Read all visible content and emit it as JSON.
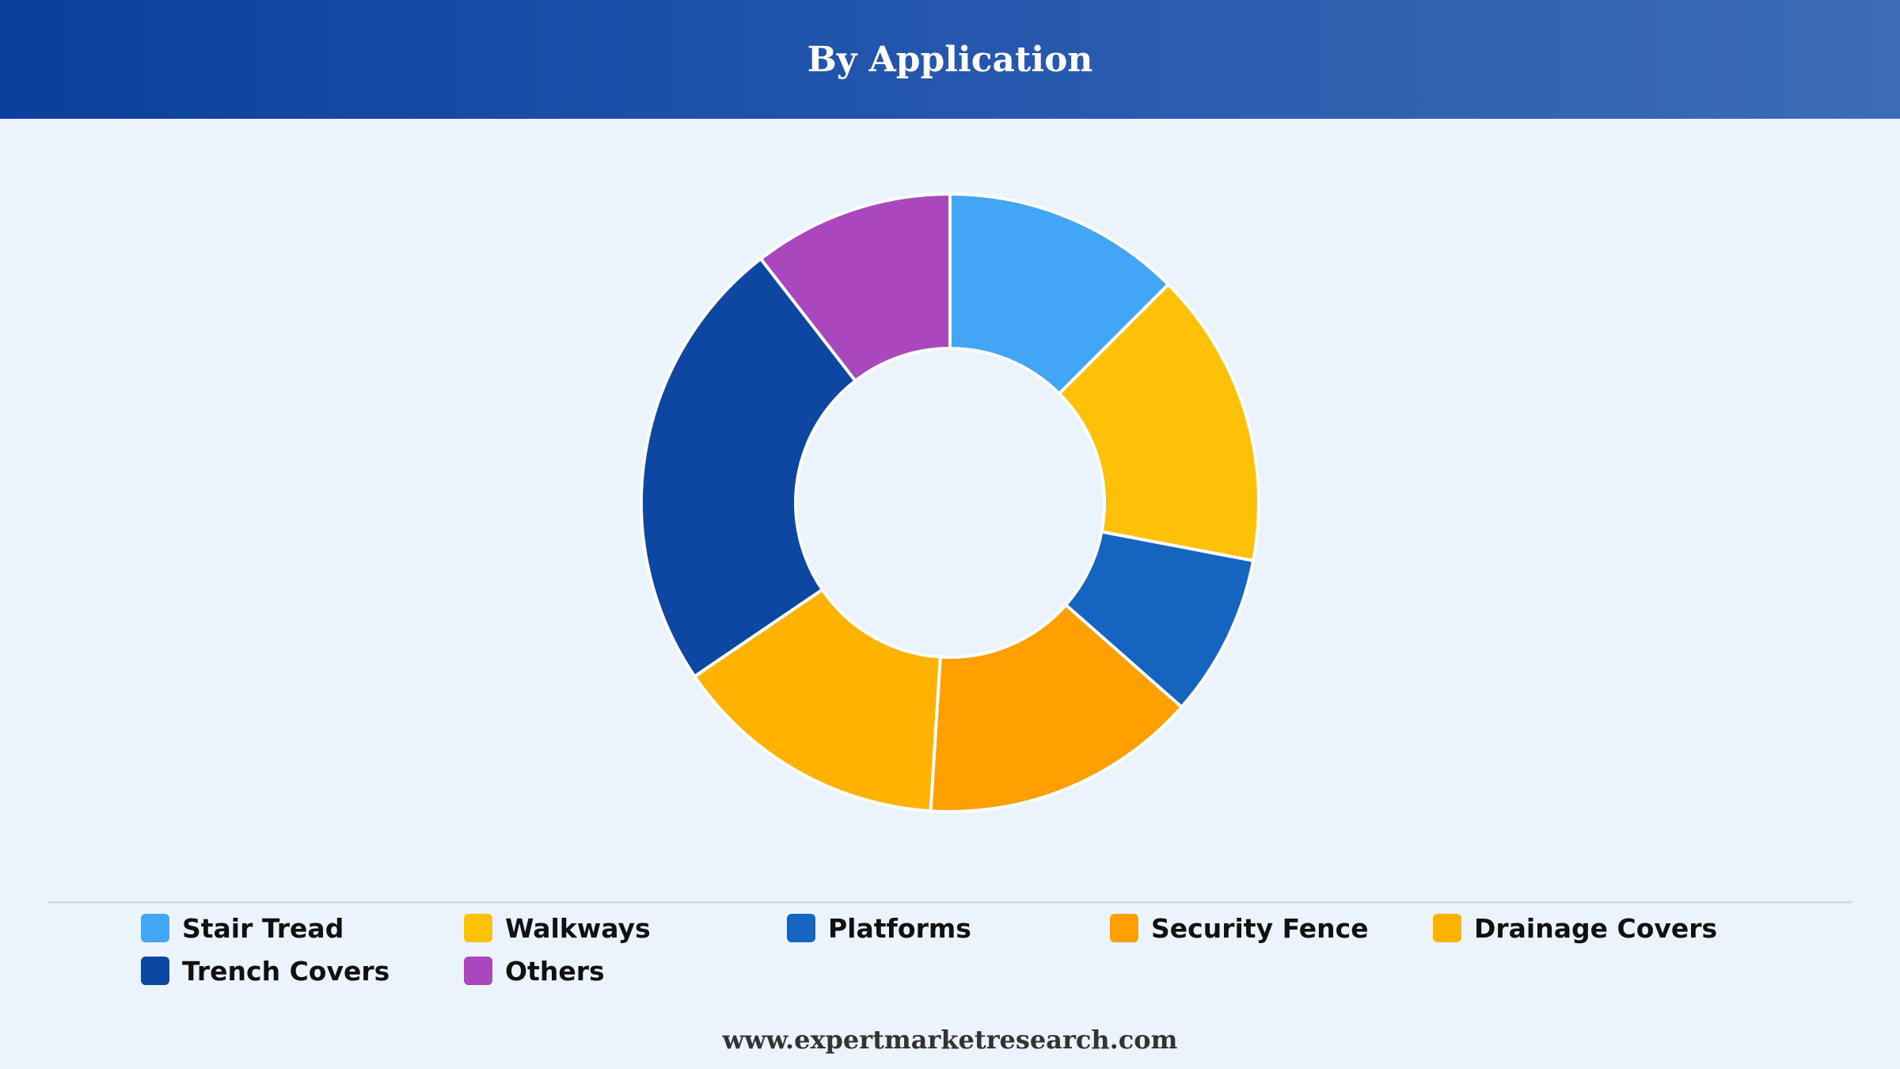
{
  "header": {
    "title": "By Application"
  },
  "chart_data": {
    "type": "pie",
    "donut": true,
    "title": "By Application",
    "categories": [
      "Stair Tread",
      "Walkways",
      "Platforms",
      "Security Fence",
      "Drainage Covers",
      "Trench Covers",
      "Others"
    ],
    "values": [
      12.5,
      15.5,
      8.5,
      14.5,
      14.5,
      24,
      10.5
    ],
    "unit": "%",
    "colors": [
      "#42a5f5",
      "#ffc107",
      "#1565c0",
      "#ffa000",
      "#ffb300",
      "#0d47a1",
      "#ab47bc"
    ],
    "slice_order_clockwise_from_top": [
      "Stair Tread",
      "Walkways",
      "Platforms",
      "Security Fence",
      "Drainage Covers",
      "Trench Covers",
      "Others"
    ],
    "legend_position": "bottom",
    "grid": false
  },
  "footer": {
    "source": "www.expertmarketresearch.com"
  }
}
